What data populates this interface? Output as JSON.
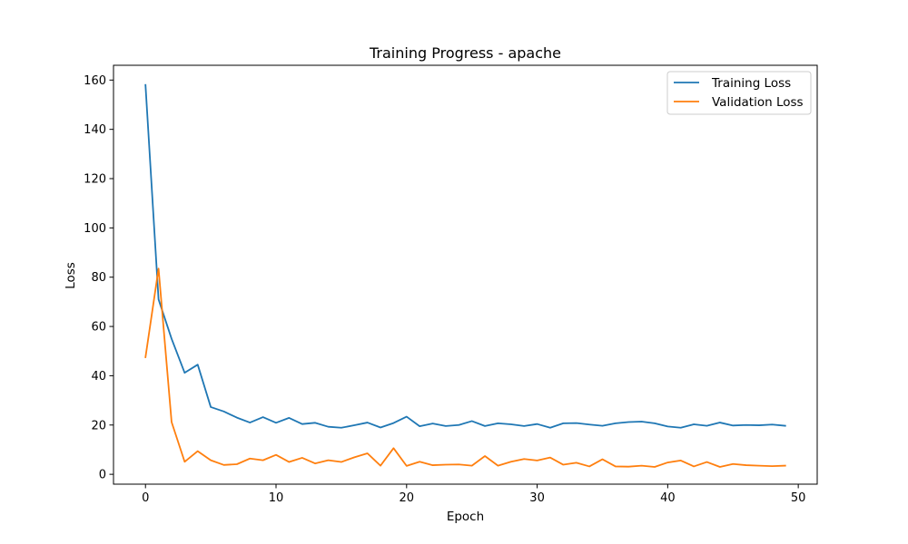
{
  "chart_data": {
    "type": "line",
    "title": "Training Progress - apache",
    "xlabel": "Epoch",
    "ylabel": "Loss",
    "xlim": [
      -2.45,
      51.45
    ],
    "ylim": [
      -4.0,
      166.0
    ],
    "xticks": [
      0,
      10,
      20,
      30,
      40,
      50
    ],
    "yticks": [
      0,
      20,
      40,
      60,
      80,
      100,
      120,
      140,
      160
    ],
    "grid": false,
    "legend_position": "upper right",
    "x": [
      0,
      1,
      2,
      3,
      4,
      5,
      6,
      7,
      8,
      9,
      10,
      11,
      12,
      13,
      14,
      15,
      16,
      17,
      18,
      19,
      20,
      21,
      22,
      23,
      24,
      25,
      26,
      27,
      28,
      29,
      30,
      31,
      32,
      33,
      34,
      35,
      36,
      37,
      38,
      39,
      40,
      41,
      42,
      43,
      44,
      45,
      46,
      47,
      48,
      49
    ],
    "series": [
      {
        "name": "Training Loss",
        "color": "#1f77b4",
        "values": [
          158.0,
          71.0,
          55.0,
          41.2,
          44.5,
          27.3,
          25.5,
          23.0,
          21.0,
          23.2,
          20.9,
          22.9,
          20.4,
          20.9,
          19.3,
          18.9,
          19.9,
          21.0,
          19.0,
          20.8,
          23.4,
          19.5,
          20.6,
          19.6,
          20.0,
          21.6,
          19.6,
          20.7,
          20.3,
          19.6,
          20.4,
          18.9,
          20.7,
          20.8,
          20.2,
          19.7,
          20.7,
          21.2,
          21.4,
          20.7,
          19.4,
          18.9,
          20.3,
          19.7,
          21.0,
          19.8,
          20.0,
          19.9,
          20.2,
          19.7
        ]
      },
      {
        "name": "Validation Loss",
        "color": "#ff7f0e",
        "values": [
          47.5,
          83.5,
          21.2,
          5.1,
          9.4,
          5.7,
          3.8,
          4.1,
          6.4,
          5.7,
          7.9,
          5.0,
          6.7,
          4.4,
          5.7,
          5.0,
          6.9,
          8.5,
          3.5,
          10.6,
          3.4,
          5.1,
          3.7,
          3.9,
          4.0,
          3.5,
          7.4,
          3.5,
          5.1,
          6.2,
          5.6,
          6.8,
          3.9,
          4.7,
          3.2,
          6.1,
          3.2,
          3.1,
          3.5,
          3.0,
          4.8,
          5.6,
          3.2,
          5.0,
          3.0,
          4.2,
          3.7,
          3.5,
          3.3,
          3.5
        ]
      }
    ]
  }
}
